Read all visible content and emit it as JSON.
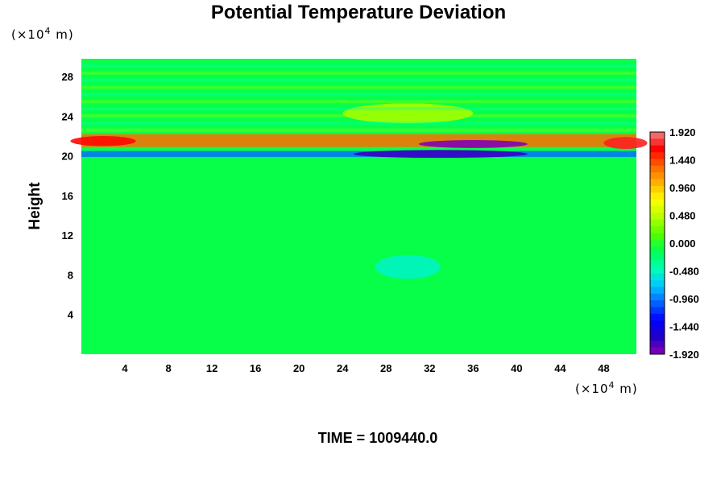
{
  "chart_data": {
    "type": "heatmap",
    "title": "Potential Temperature Deviation",
    "xlabel": "",
    "ylabel": "Height",
    "x_unit_prefix": "(×10",
    "x_unit_exp": "4",
    "x_unit_suffix": " m)",
    "y_unit_prefix": "(×10",
    "y_unit_exp": "4",
    "y_unit_suffix": " m)",
    "xlim": [
      0,
      51
    ],
    "ylim": [
      0,
      29.8
    ],
    "xticks": [
      4,
      8,
      12,
      16,
      20,
      24,
      28,
      32,
      36,
      40,
      44,
      48
    ],
    "yticks": [
      4,
      8,
      12,
      16,
      20,
      24,
      28
    ],
    "colorbar": {
      "min": -1.92,
      "max": 1.92,
      "levels": 33,
      "tick_values": [
        1.92,
        1.44,
        0.96,
        0.48,
        0.0,
        -0.48,
        -0.96,
        -1.44,
        -1.92
      ],
      "tick_labels": [
        "1.920",
        "1.440",
        "0.960",
        "0.480",
        "0.000",
        "-0.480",
        "-0.960",
        "-1.440",
        "-1.920"
      ],
      "colors": [
        "#8a00b4",
        "#1e00c8",
        "#0000ff",
        "#0064ff",
        "#00c8ff",
        "#00ffb4",
        "#00ff50",
        "#50ff00",
        "#b4ff00",
        "#ffff00",
        "#ffb400",
        "#ff6400",
        "#ff0000",
        "#f08080"
      ]
    },
    "features": [
      {
        "kind": "band",
        "x0": 0,
        "x1": 51,
        "y0": 20.9,
        "y1": 22.2,
        "value": 1.3
      },
      {
        "kind": "band",
        "x0": 0,
        "x1": 51,
        "y0": 19.9,
        "y1": 20.5,
        "value": -1.0
      },
      {
        "kind": "blob",
        "x": 33,
        "y": 20.2,
        "rx": 8,
        "ry": 0.4,
        "value": -1.7
      },
      {
        "kind": "blob",
        "x": 36,
        "y": 21.2,
        "rx": 5,
        "ry": 0.4,
        "value": -1.9
      },
      {
        "kind": "blob",
        "x": 2,
        "y": 21.5,
        "rx": 3,
        "ry": 0.5,
        "value": 1.6
      },
      {
        "kind": "blob",
        "x": 50,
        "y": 21.3,
        "rx": 2,
        "ry": 0.6,
        "value": 1.7
      },
      {
        "kind": "blob",
        "x": 30,
        "y": 24.3,
        "rx": 6,
        "ry": 1,
        "value": 0.4
      },
      {
        "kind": "blob",
        "x": 30,
        "y": 8.8,
        "rx": 3,
        "ry": 1.2,
        "value": -0.5
      }
    ],
    "background_value": -0.12
  },
  "footer": {
    "time_label": "TIME = 1009440.0"
  }
}
